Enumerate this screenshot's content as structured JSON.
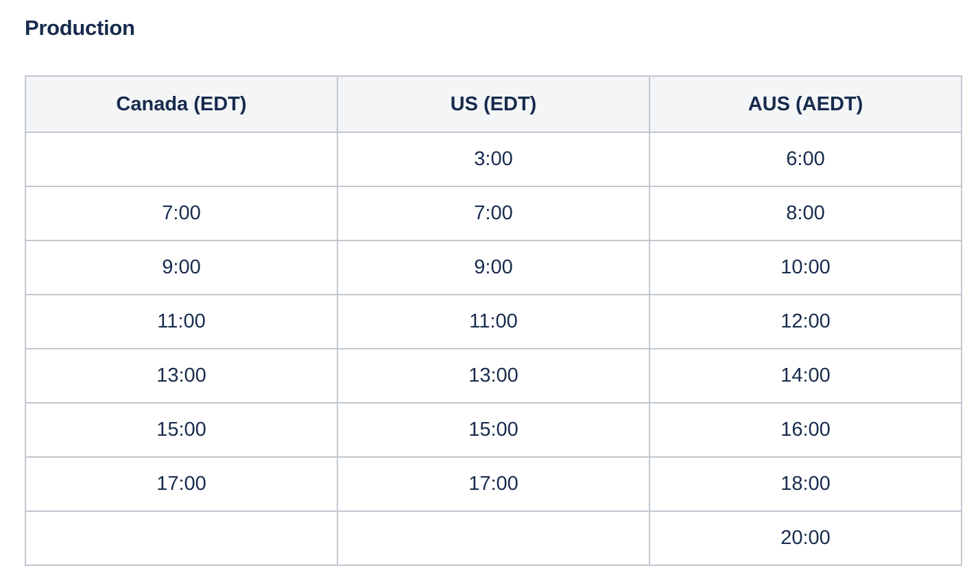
{
  "page": {
    "title": "Production"
  },
  "colors": {
    "text": "#172b4d",
    "table_border": "#c1c7d0",
    "header_background": "#f4f5f7",
    "page_background": "#ffffff"
  },
  "table": {
    "columns": [
      "Canada (EDT)",
      "US (EDT)",
      "AUS (AEDT)"
    ],
    "rows": [
      [
        "",
        "3:00",
        "6:00"
      ],
      [
        "7:00",
        "7:00",
        "8:00"
      ],
      [
        "9:00",
        "9:00",
        "10:00"
      ],
      [
        "11:00",
        "11:00",
        "12:00"
      ],
      [
        "13:00",
        "13:00",
        "14:00"
      ],
      [
        "15:00",
        "15:00",
        "16:00"
      ],
      [
        "17:00",
        "17:00",
        "18:00"
      ],
      [
        "",
        "",
        "20:00"
      ]
    ]
  }
}
